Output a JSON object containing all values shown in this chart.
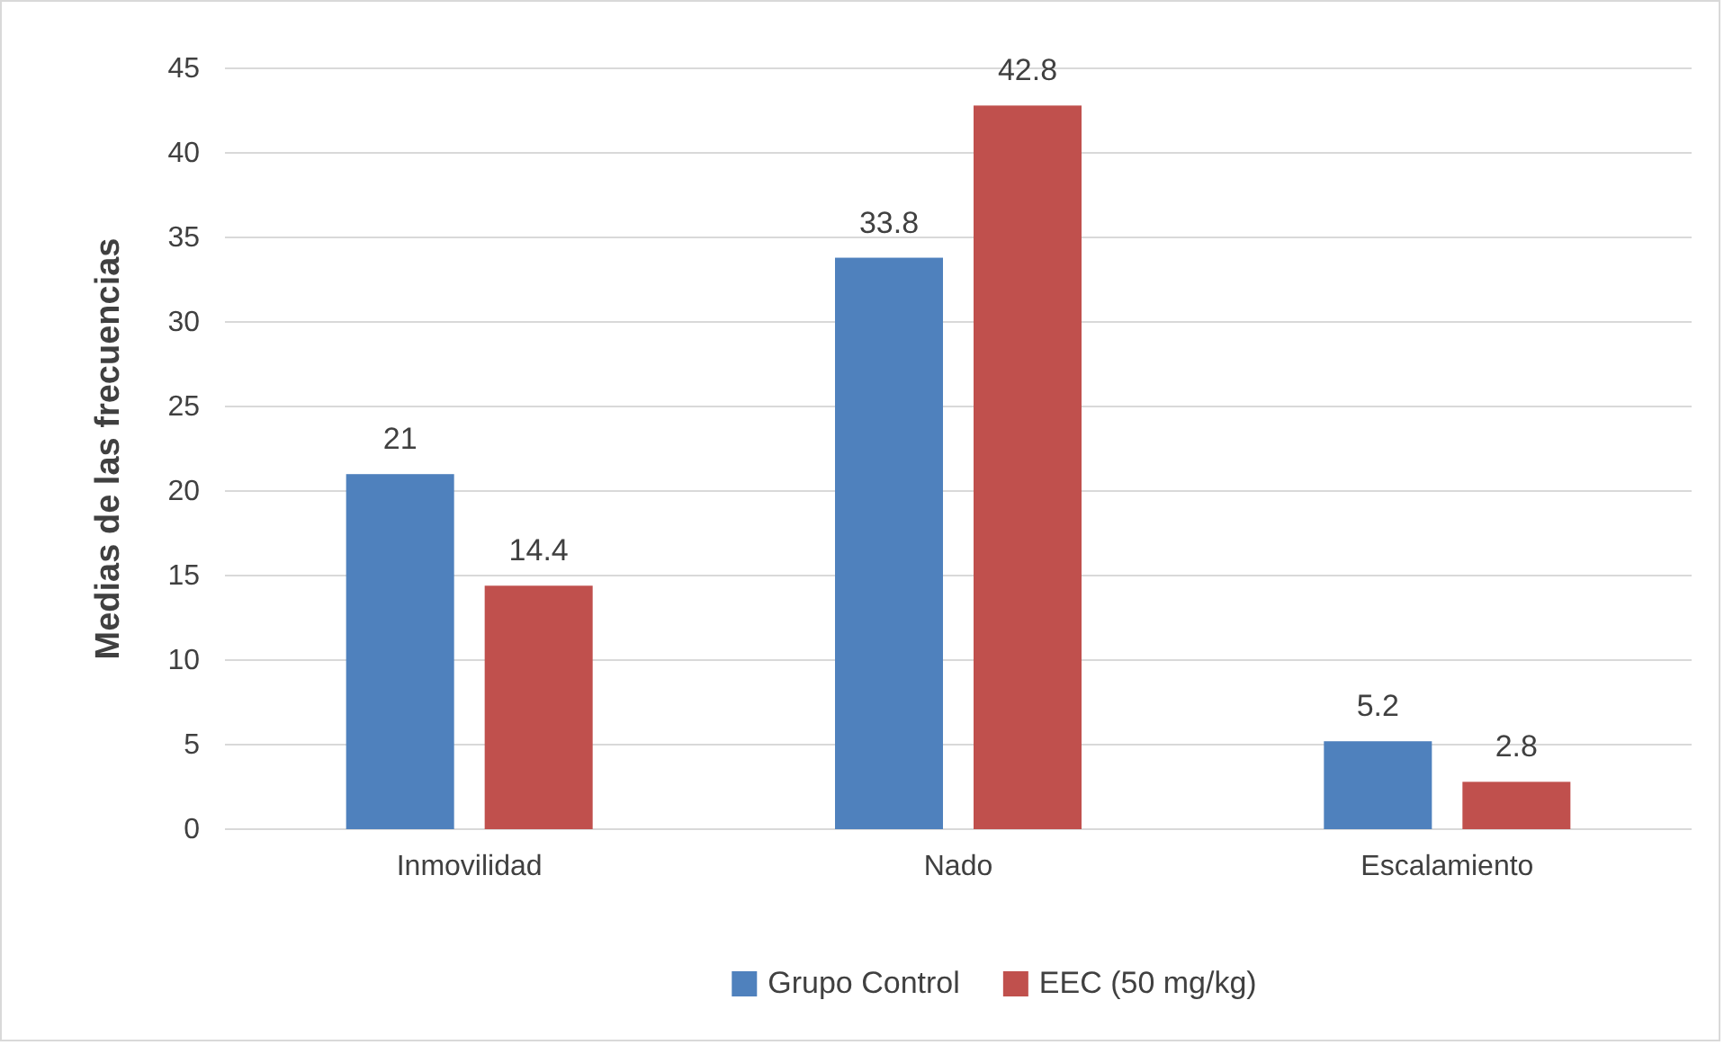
{
  "chart_data": {
    "type": "bar",
    "ylabel": "Medias de las frecuencias",
    "categories": [
      "Inmovilidad",
      "Nado",
      "Escalamiento"
    ],
    "series": [
      {
        "name": "Grupo Control",
        "color": "#4f81bd",
        "values": [
          21,
          33.8,
          5.2
        ]
      },
      {
        "name": "EEC (50 mg/kg)",
        "color": "#c0504d",
        "values": [
          14.4,
          42.8,
          2.8
        ]
      }
    ],
    "ylim": [
      0,
      45
    ],
    "yticks": [
      0,
      5,
      10,
      15,
      20,
      25,
      30,
      35,
      40,
      45
    ],
    "grid": "y",
    "legend": "bottom",
    "data_labels": true
  }
}
